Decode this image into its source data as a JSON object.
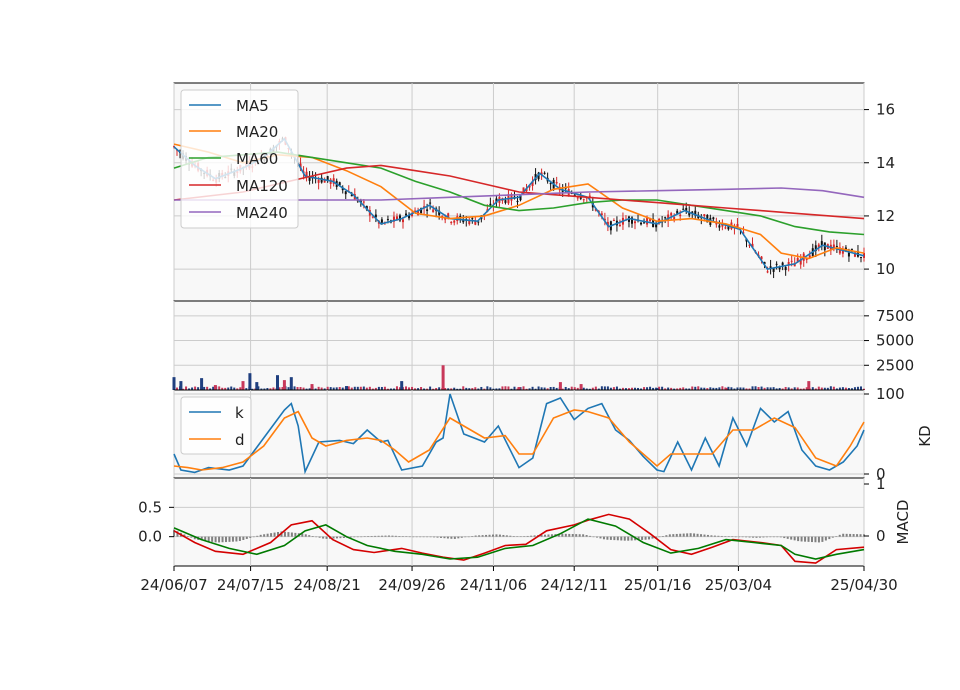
{
  "colors": {
    "ma5": "#1f77b4",
    "ma20": "#ff7f0e",
    "ma60": "#2ca02c",
    "ma120": "#d62728",
    "ma240": "#9467bd",
    "k": "#1f77b4",
    "d": "#ff7f0e",
    "macd_dif": "#d40000",
    "macd_signal": "#007a00",
    "hist": "#808080",
    "candle_up": "#d62728",
    "candle_down": "#111111",
    "vol_up": "#c8385a",
    "vol_down": "#1f3f7f",
    "panel_bg": "#f8f8f8",
    "grid": "#cccccc"
  },
  "chart_data": [
    {
      "type": "line",
      "panel": "price",
      "yticks": [
        10,
        12,
        14,
        16
      ],
      "ylim": [
        8.8,
        17.0
      ],
      "grid": true,
      "legend_position": "top-left",
      "series": [
        {
          "name": "MA5",
          "color_key": "ma5",
          "x": [
            0,
            0.03,
            0.06,
            0.1,
            0.13,
            0.16,
            0.19,
            0.23,
            0.26,
            0.3,
            0.33,
            0.37,
            0.4,
            0.44,
            0.47,
            0.5,
            0.53,
            0.56,
            0.6,
            0.63,
            0.66,
            0.7,
            0.74,
            0.78,
            0.82,
            0.86,
            0.9,
            0.94,
            0.97,
            1.0
          ],
          "values": [
            14.6,
            13.9,
            13.4,
            13.8,
            14.2,
            14.9,
            13.5,
            13.3,
            12.8,
            11.7,
            11.9,
            12.4,
            11.9,
            11.8,
            12.6,
            12.7,
            13.6,
            13.0,
            12.7,
            11.6,
            11.9,
            11.7,
            12.2,
            11.8,
            11.5,
            10.0,
            10.2,
            10.9,
            10.7,
            10.5
          ]
        },
        {
          "name": "MA20",
          "color_key": "ma20",
          "x": [
            0,
            0.05,
            0.1,
            0.15,
            0.2,
            0.25,
            0.3,
            0.35,
            0.4,
            0.45,
            0.5,
            0.55,
            0.6,
            0.65,
            0.7,
            0.75,
            0.8,
            0.85,
            0.88,
            0.92,
            0.96,
            1.0
          ],
          "values": [
            14.7,
            14.4,
            14.0,
            14.3,
            14.2,
            13.7,
            13.1,
            12.1,
            11.9,
            12.0,
            12.4,
            13.0,
            13.2,
            12.3,
            11.8,
            11.9,
            11.7,
            11.3,
            10.6,
            10.4,
            10.8,
            10.6
          ]
        },
        {
          "name": "MA60",
          "color_key": "ma60",
          "x": [
            0,
            0.05,
            0.1,
            0.15,
            0.2,
            0.25,
            0.3,
            0.35,
            0.4,
            0.45,
            0.5,
            0.55,
            0.6,
            0.65,
            0.7,
            0.75,
            0.8,
            0.85,
            0.9,
            0.95,
            1.0
          ],
          "values": [
            13.8,
            14.2,
            14.3,
            14.4,
            14.2,
            14.0,
            13.8,
            13.3,
            12.9,
            12.4,
            12.2,
            12.3,
            12.5,
            12.6,
            12.6,
            12.4,
            12.2,
            12.0,
            11.6,
            11.4,
            11.3
          ]
        },
        {
          "name": "MA120",
          "color_key": "ma120",
          "x": [
            0,
            0.1,
            0.2,
            0.25,
            0.3,
            0.35,
            0.4,
            0.45,
            0.5,
            0.55,
            0.6,
            0.65,
            0.7,
            0.75,
            0.8,
            0.85,
            0.9,
            0.95,
            1.0
          ],
          "values": [
            12.6,
            12.9,
            13.5,
            13.8,
            13.9,
            13.7,
            13.5,
            13.2,
            12.9,
            12.8,
            12.7,
            12.6,
            12.5,
            12.4,
            12.3,
            12.2,
            12.1,
            12.0,
            11.9
          ]
        },
        {
          "name": "MA240",
          "color_key": "ma240",
          "x": [
            0,
            0.15,
            0.3,
            0.4,
            0.5,
            0.55,
            0.6,
            0.7,
            0.8,
            0.88,
            0.94,
            1.0
          ],
          "values": [
            12.6,
            12.6,
            12.6,
            12.7,
            12.8,
            12.85,
            12.9,
            12.95,
            13.0,
            13.05,
            12.95,
            12.7
          ]
        }
      ]
    },
    {
      "type": "bar",
      "panel": "volume",
      "yticks": [
        2500,
        5000,
        7500
      ],
      "ylim": [
        0,
        9000
      ],
      "spikes": [
        {
          "x": 0.0,
          "value": 1300
        },
        {
          "x": 0.01,
          "value": 900
        },
        {
          "x": 0.04,
          "value": 1200
        },
        {
          "x": 0.06,
          "value": 500
        },
        {
          "x": 0.1,
          "value": 900
        },
        {
          "x": 0.11,
          "value": 1700
        },
        {
          "x": 0.12,
          "value": 800
        },
        {
          "x": 0.15,
          "value": 1500
        },
        {
          "x": 0.16,
          "value": 1000
        },
        {
          "x": 0.17,
          "value": 1300
        },
        {
          "x": 0.2,
          "value": 600
        },
        {
          "x": 0.25,
          "value": 400
        },
        {
          "x": 0.33,
          "value": 900
        },
        {
          "x": 0.39,
          "value": 2500
        },
        {
          "x": 0.5,
          "value": 300
        },
        {
          "x": 0.56,
          "value": 800
        },
        {
          "x": 0.59,
          "value": 600
        },
        {
          "x": 0.7,
          "value": 200
        },
        {
          "x": 0.8,
          "value": 200
        },
        {
          "x": 0.92,
          "value": 900
        }
      ]
    },
    {
      "type": "line",
      "panel": "kd",
      "ylabel": "KD",
      "yticks": [
        0,
        100
      ],
      "ylim": [
        -5,
        105
      ],
      "legend_position": "top-left",
      "series": [
        {
          "name": "k",
          "color_key": "k",
          "x": [
            0,
            0.01,
            0.03,
            0.05,
            0.08,
            0.1,
            0.13,
            0.16,
            0.17,
            0.18,
            0.19,
            0.21,
            0.24,
            0.26,
            0.28,
            0.3,
            0.31,
            0.33,
            0.36,
            0.38,
            0.39,
            0.4,
            0.42,
            0.45,
            0.47,
            0.5,
            0.52,
            0.54,
            0.56,
            0.58,
            0.6,
            0.62,
            0.64,
            0.66,
            0.68,
            0.7,
            0.71,
            0.73,
            0.75,
            0.77,
            0.79,
            0.81,
            0.83,
            0.85,
            0.87,
            0.89,
            0.91,
            0.93,
            0.95,
            0.97,
            0.99,
            1.0
          ],
          "values": [
            25,
            5,
            2,
            8,
            5,
            10,
            45,
            80,
            88,
            60,
            3,
            40,
            42,
            38,
            55,
            40,
            42,
            5,
            10,
            40,
            45,
            100,
            50,
            40,
            60,
            8,
            20,
            88,
            95,
            68,
            82,
            88,
            55,
            42,
            22,
            5,
            3,
            40,
            5,
            45,
            10,
            70,
            35,
            82,
            65,
            78,
            30,
            10,
            5,
            15,
            35,
            55
          ]
        },
        {
          "name": "d",
          "color_key": "d",
          "x": [
            0,
            0.02,
            0.04,
            0.07,
            0.1,
            0.13,
            0.16,
            0.18,
            0.2,
            0.22,
            0.25,
            0.28,
            0.3,
            0.32,
            0.34,
            0.37,
            0.4,
            0.42,
            0.45,
            0.48,
            0.5,
            0.52,
            0.55,
            0.58,
            0.6,
            0.63,
            0.66,
            0.7,
            0.72,
            0.75,
            0.78,
            0.81,
            0.84,
            0.87,
            0.9,
            0.93,
            0.96,
            0.98,
            1.0
          ],
          "values": [
            10,
            8,
            5,
            8,
            15,
            35,
            70,
            78,
            45,
            35,
            42,
            45,
            42,
            30,
            15,
            30,
            70,
            60,
            45,
            48,
            25,
            25,
            70,
            80,
            78,
            70,
            40,
            10,
            25,
            25,
            25,
            55,
            55,
            70,
            58,
            20,
            10,
            35,
            65
          ]
        }
      ]
    },
    {
      "type": "line",
      "panel": "macd",
      "ylabel": "MACD",
      "yticks_left": [
        0.0,
        0.5
      ],
      "ytick_labels_left": [
        "0.0",
        "0.5"
      ],
      "yticks_right": [
        0,
        1
      ],
      "ylim": [
        -0.5,
        1.0
      ],
      "series": [
        {
          "name": "",
          "color_key": "macd_dif",
          "x": [
            0,
            0.03,
            0.06,
            0.1,
            0.14,
            0.17,
            0.2,
            0.23,
            0.26,
            0.29,
            0.33,
            0.36,
            0.39,
            0.42,
            0.45,
            0.48,
            0.51,
            0.54,
            0.58,
            0.6,
            0.63,
            0.66,
            0.69,
            0.72,
            0.75,
            0.78,
            0.81,
            0.85,
            0.88,
            0.9,
            0.93,
            0.96,
            1.0
          ],
          "values": [
            0.1,
            -0.1,
            -0.25,
            -0.3,
            -0.1,
            0.2,
            0.27,
            -0.05,
            -0.22,
            -0.27,
            -0.2,
            -0.28,
            -0.35,
            -0.4,
            -0.28,
            -0.15,
            -0.13,
            0.1,
            0.2,
            0.28,
            0.38,
            0.3,
            0.05,
            -0.22,
            -0.3,
            -0.18,
            -0.05,
            -0.1,
            -0.15,
            -0.42,
            -0.45,
            -0.22,
            -0.18
          ]
        },
        {
          "name": "",
          "color_key": "macd_signal",
          "x": [
            0,
            0.04,
            0.08,
            0.12,
            0.16,
            0.19,
            0.22,
            0.25,
            0.28,
            0.32,
            0.36,
            0.4,
            0.44,
            0.48,
            0.52,
            0.56,
            0.6,
            0.64,
            0.68,
            0.72,
            0.76,
            0.8,
            0.84,
            0.88,
            0.9,
            0.93,
            0.96,
            1.0
          ],
          "values": [
            0.15,
            -0.05,
            -0.2,
            -0.3,
            -0.15,
            0.1,
            0.2,
            0.0,
            -0.15,
            -0.25,
            -0.3,
            -0.38,
            -0.35,
            -0.2,
            -0.15,
            0.05,
            0.3,
            0.18,
            -0.1,
            -0.28,
            -0.2,
            -0.05,
            -0.1,
            -0.15,
            -0.3,
            -0.38,
            -0.3,
            -0.22
          ]
        }
      ],
      "hist": [
        0.12,
        -0.05,
        -0.1,
        -0.08,
        0.03,
        0.09,
        0.05,
        -0.04,
        -0.02,
        0.01,
        0.02,
        0.0,
        -0.01,
        -0.04,
        0.02,
        0.04,
        0.0,
        0.03,
        0.05,
        0.04,
        -0.05,
        -0.07,
        -0.05,
        0.04,
        0.06,
        0.02,
        0.0,
        -0.02,
        0.0,
        -0.08,
        -0.1,
        0.05,
        0.04
      ]
    }
  ],
  "x_axis": {
    "tick_labels": [
      "24/06/07",
      "24/07/15",
      "24/08/21",
      "24/09/26",
      "24/11/06",
      "24/12/11",
      "25/01/16",
      "25/03/04",
      "25/04/30"
    ],
    "tick_positions": [
      0.0,
      0.111,
      0.222,
      0.345,
      0.463,
      0.58,
      0.701,
      0.818,
      1.0
    ]
  }
}
